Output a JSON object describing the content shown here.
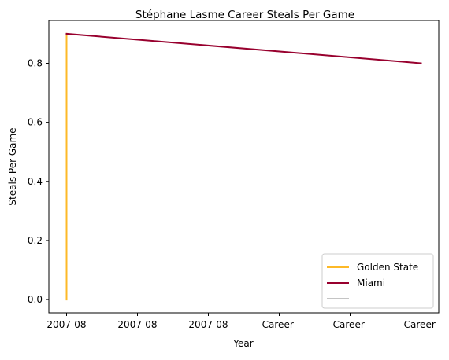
{
  "chart_data": {
    "type": "line",
    "title": "Stéphane Lasme Career Steals Per Game",
    "xlabel": "Year",
    "ylabel": "Steals Per Game",
    "x_tick_labels": [
      "2007-08",
      "2007-08",
      "2007-08",
      "Career-",
      "Career-",
      "Career-"
    ],
    "x_range": [
      -0.25,
      5.25
    ],
    "ylim": [
      -0.045,
      0.945
    ],
    "y_ticks": [
      0.0,
      0.2,
      0.4,
      0.6,
      0.8
    ],
    "y_tick_labels": [
      "0.0",
      "0.2",
      "0.4",
      "0.6",
      "0.8"
    ],
    "grid": false,
    "legend_position": "lower right",
    "series": [
      {
        "name": "Golden State",
        "color": "#FDB927",
        "points": [
          [
            0,
            0.0
          ],
          [
            0,
            0.9
          ]
        ]
      },
      {
        "name": "Miami",
        "color": "#98002E",
        "points": [
          [
            0,
            0.9
          ],
          [
            5,
            0.8
          ]
        ]
      },
      {
        "name": "-",
        "color": "#C4C4C4",
        "points": []
      }
    ]
  }
}
